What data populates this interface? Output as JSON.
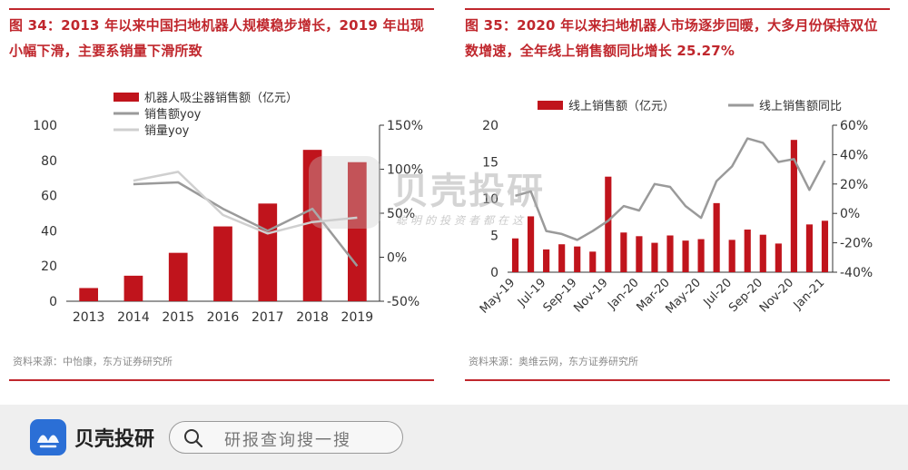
{
  "left": {
    "title": "图 34：2013 年以来中国扫地机器人规模稳步增长，2019 年出现小幅下滑，主要系销量下滑所致",
    "source": "资料来源：中怡康，东方证券研究所"
  },
  "right": {
    "title": "图 35：2020 年以来扫地机器人市场逐步回暖，大多月份保持双位数增速，全年线上销售额同比增长 25.27%",
    "source": "资料来源：奥维云网，东方证券研究所"
  },
  "chart_data": [
    {
      "type": "bar",
      "categories": [
        "2013",
        "2014",
        "2015",
        "2016",
        "2017",
        "2018",
        "2019"
      ],
      "series": [
        {
          "name": "机器人吸尘器销售额（亿元）",
          "type": "bar",
          "axis": "left",
          "color": "#c0141c",
          "values": [
            7.5,
            14.5,
            27.5,
            42.5,
            55.5,
            86,
            79
          ]
        },
        {
          "name": "销售额yoy",
          "type": "line",
          "axis": "right",
          "color": "#9a9a9a",
          "values": [
            null,
            83,
            85,
            55,
            30,
            55,
            -10
          ]
        },
        {
          "name": "销量yoy",
          "type": "line",
          "axis": "right",
          "color": "#cfcfcf",
          "values": [
            null,
            87,
            97,
            48,
            27,
            40,
            45
          ]
        }
      ],
      "ylim_left": [
        0,
        100
      ],
      "yticks_left": [
        "0",
        "20",
        "40",
        "60",
        "80",
        "100"
      ],
      "ylim_right": [
        -50,
        150
      ],
      "yticks_right": [
        "-50%",
        "0%",
        "50%",
        "100%",
        "150%"
      ],
      "legend": "top-left"
    },
    {
      "type": "bar",
      "categories": [
        "May-19",
        "Jun-19",
        "Jul-19",
        "Aug-19",
        "Sep-19",
        "Oct-19",
        "Nov-19",
        "Dec-19",
        "Jan-20",
        "Feb-20",
        "Mar-20",
        "Apr-20",
        "May-20",
        "Jun-20",
        "Jul-20",
        "Aug-20",
        "Sep-20",
        "Oct-20",
        "Nov-20",
        "Dec-20",
        "Jan-21"
      ],
      "xtick_labels": [
        "May-19",
        "Jul-19",
        "Sep-19",
        "Nov-19",
        "Jan-20",
        "Mar-20",
        "May-20",
        "Jul-20",
        "Sep-20",
        "Nov-20",
        "Jan-21"
      ],
      "series": [
        {
          "name": "线上销售额（亿元）",
          "type": "bar",
          "axis": "left",
          "color": "#c0141c",
          "values": [
            4.6,
            7.6,
            3.1,
            3.8,
            3.5,
            2.8,
            13,
            5.4,
            4.9,
            4,
            5,
            4.3,
            4.5,
            9.4,
            4.4,
            5.8,
            5.1,
            3.9,
            18,
            6.5,
            7
          ]
        },
        {
          "name": "线上销售额同比",
          "type": "line",
          "axis": "right",
          "color": "#9a9a9a",
          "values": [
            12,
            15,
            -12,
            -14,
            -18,
            -12,
            -5,
            5,
            2,
            20,
            18,
            5,
            -3,
            22,
            32,
            51,
            48,
            35,
            37,
            16,
            36
          ]
        }
      ],
      "ylim_left": [
        0,
        20
      ],
      "yticks_left": [
        "0",
        "5",
        "10",
        "15",
        "20"
      ],
      "ylim_right": [
        -40,
        60
      ],
      "yticks_right": [
        "-40%",
        "-20%",
        "0%",
        "20%",
        "40%",
        "60%"
      ],
      "legend": "top"
    }
  ],
  "bottom_bar": {
    "brand": "贝壳投研",
    "search_placeholder": "研报查询搜一搜",
    "logo_color": "#2b6fd6"
  },
  "watermark": {
    "text": "贝壳投研",
    "subtext": "聪明的投资者都在这"
  }
}
